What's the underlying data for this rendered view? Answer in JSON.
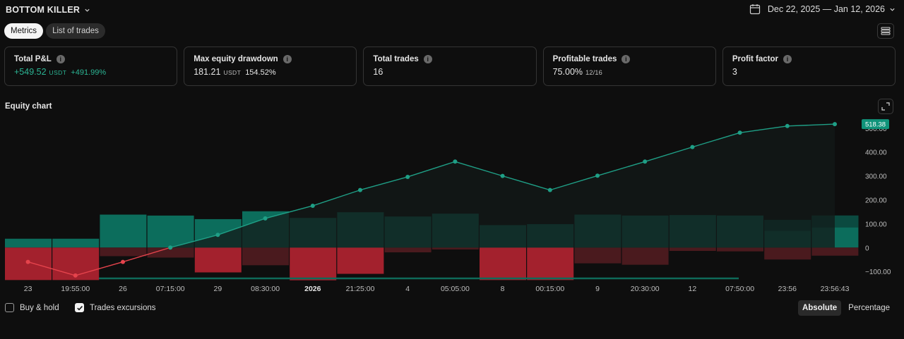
{
  "header": {
    "strategy_name": "BOTTOM KILLER",
    "date_range": "Dec 22, 2025 — Jan 12, 2026"
  },
  "tabs": [
    {
      "label": "Metrics",
      "active": true
    },
    {
      "label": "List of trades",
      "active": false
    }
  ],
  "metrics": [
    {
      "title": "Total P&L",
      "value": "+549.52",
      "unit": "USDT",
      "pct": "+491.99%",
      "positive": true
    },
    {
      "title": "Max equity drawdown",
      "value": "181.21",
      "unit": "USDT",
      "pct": "154.52%"
    },
    {
      "title": "Total trades",
      "value": "16"
    },
    {
      "title": "Profitable trades",
      "value": "75.00%",
      "fraction": "12/16"
    },
    {
      "title": "Profit factor",
      "value": "3"
    }
  ],
  "chart_title": "Equity chart",
  "chart_data": {
    "type": "line",
    "x_tick_labels": [
      {
        "label": "23",
        "bold": false
      },
      {
        "label": "19:55:00",
        "bold": false
      },
      {
        "label": "26",
        "bold": false
      },
      {
        "label": "07:15:00",
        "bold": false
      },
      {
        "label": "29",
        "bold": false
      },
      {
        "label": "08:30:00",
        "bold": false
      },
      {
        "label": "2026",
        "bold": true
      },
      {
        "label": "21:25:00",
        "bold": false
      },
      {
        "label": "4",
        "bold": false
      },
      {
        "label": "05:05:00",
        "bold": false
      },
      {
        "label": "8",
        "bold": false
      },
      {
        "label": "00:15:00",
        "bold": false
      },
      {
        "label": "9",
        "bold": false
      },
      {
        "label": "20:30:00",
        "bold": false
      },
      {
        "label": "12",
        "bold": false
      },
      {
        "label": "07:50:00",
        "bold": false
      },
      {
        "label": "23:56",
        "bold": false
      },
      {
        "label": "23:56:43",
        "bold": false
      }
    ],
    "y_ticks": [
      -100,
      0,
      100,
      200,
      300,
      400,
      500
    ],
    "y_tick_labels": [
      "−100.00",
      "0",
      "100.00",
      "200.00",
      "300.00",
      "400.00",
      "500.00"
    ],
    "ylim": [
      -135,
      535
    ],
    "equity": [
      -60,
      -117,
      -60,
      0,
      53,
      122,
      175,
      241,
      296,
      360,
      300,
      241,
      301,
      360,
      421,
      481,
      509,
      517
    ],
    "current_value_label": "518.38",
    "excursions": [
      {
        "runup": 37,
        "drawdown": -136
      },
      {
        "runup": 37,
        "drawdown": -136
      },
      {
        "runup": 138,
        "drawdown": -36
      },
      {
        "runup": 134,
        "drawdown": -42
      },
      {
        "runup": 119,
        "drawdown": -104
      },
      {
        "runup": 152,
        "drawdown": -74
      },
      {
        "runup": 124,
        "drawdown": -137
      },
      {
        "runup": 148,
        "drawdown": -110
      },
      {
        "runup": 130,
        "drawdown": -20
      },
      {
        "runup": 142,
        "drawdown": -8
      },
      {
        "runup": 94,
        "drawdown": -136
      },
      {
        "runup": 98,
        "drawdown": -136
      },
      {
        "runup": 138,
        "drawdown": -66
      },
      {
        "runup": 134,
        "drawdown": -72
      },
      {
        "runup": 136,
        "drawdown": -14
      },
      {
        "runup": 134,
        "drawdown": -16
      },
      {
        "runup": 116,
        "drawdown": -50
      },
      {
        "runup": 134,
        "drawdown": -34
      }
    ],
    "excursions_secondary": [
      {
        "index": 16,
        "runup": 70
      },
      {
        "index": 17,
        "runup": 84
      }
    ],
    "colors": {
      "line": "#1f9f86",
      "line_negative": "#e5434c",
      "runup": "#0c6d5c",
      "runup_dim": "#0b4a40",
      "drawdown": "#a3212d",
      "drawdown_dim": "#4a1a1e",
      "area": "#131a18",
      "label_bg": "#10937a"
    }
  },
  "bottom": {
    "buy_hold_label": "Buy & hold",
    "buy_hold_checked": false,
    "excursions_label": "Trades excursions",
    "excursions_checked": true,
    "scale_options": [
      {
        "label": "Absolute",
        "active": true
      },
      {
        "label": "Percentage",
        "active": false
      }
    ]
  }
}
